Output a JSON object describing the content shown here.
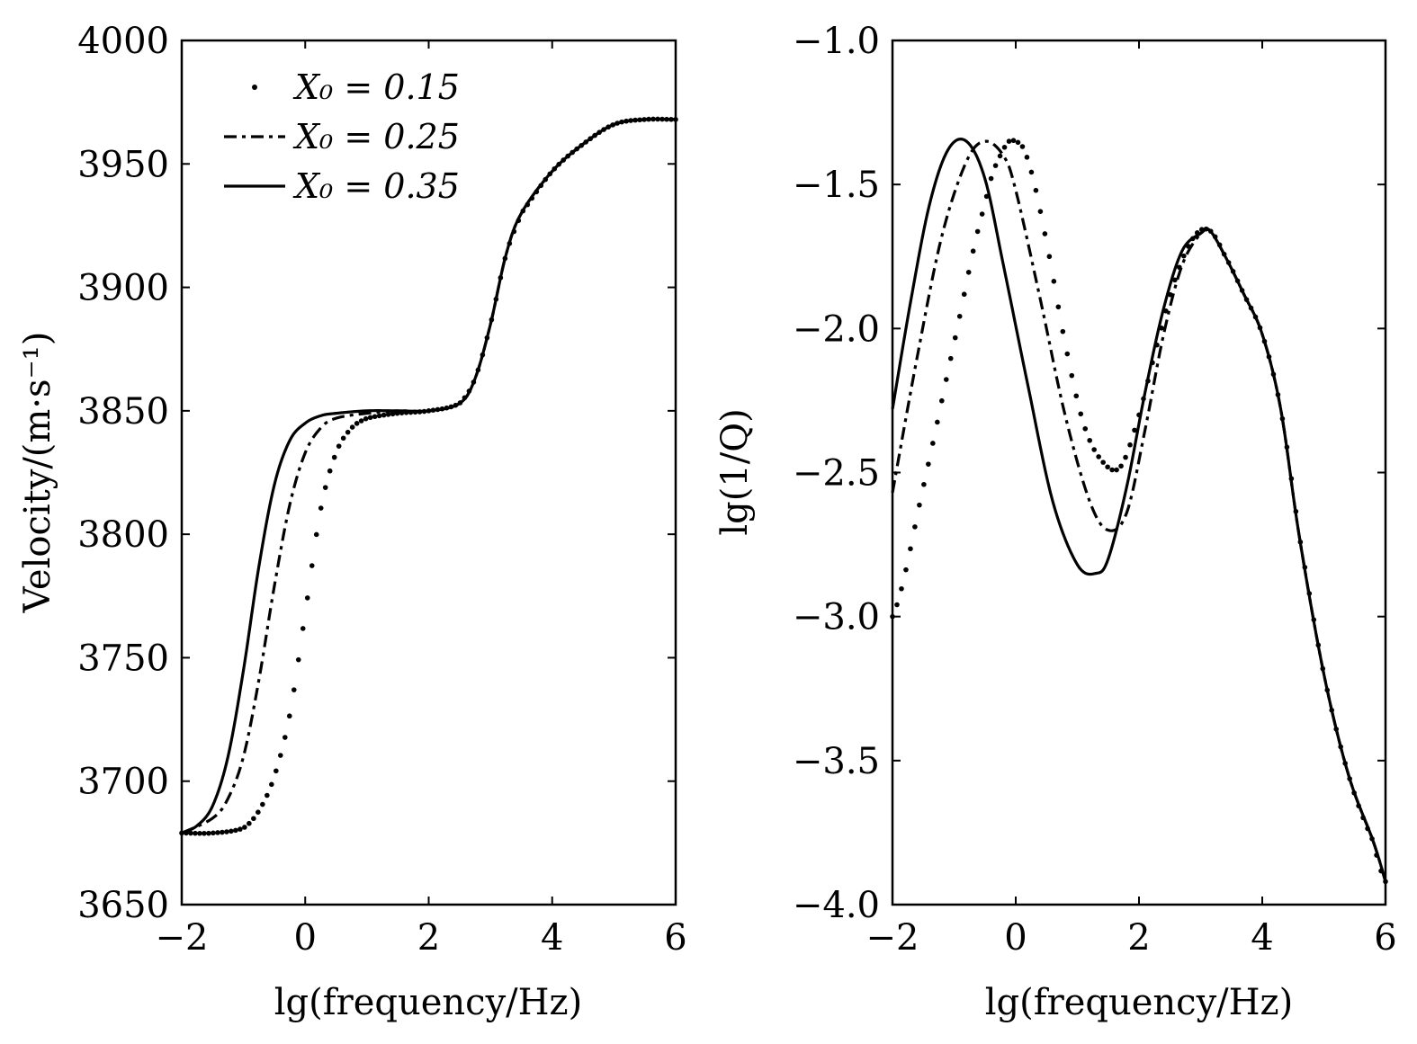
{
  "chart_data": [
    {
      "type": "line",
      "xlabel": "lg(frequency/Hz)",
      "ylabel": "Velocity/(m·s⁻¹)",
      "xlim": [
        -2,
        6
      ],
      "ylim": [
        3650,
        4000
      ],
      "xticks": [
        "−2",
        "0",
        "2",
        "4",
        "6"
      ],
      "yticks": [
        "3650",
        "3700",
        "3750",
        "3800",
        "3850",
        "3900",
        "3950",
        "4000"
      ],
      "legend_position": "top-left",
      "series": [
        {
          "name": "X₀ = 0.15",
          "style": "dotted",
          "x": [
            -2,
            -1.5,
            -1,
            -0.75,
            -0.5,
            -0.25,
            0,
            0.25,
            0.5,
            0.75,
            1,
            1.5,
            2,
            2.5,
            2.75,
            3,
            3.25,
            3.5,
            4,
            4.5,
            5,
            5.5,
            6
          ],
          "y": [
            3679,
            3679,
            3681,
            3688,
            3702,
            3727,
            3768,
            3810,
            3833,
            3843,
            3847,
            3849,
            3850,
            3853,
            3863,
            3885,
            3913,
            3930,
            3947,
            3958,
            3966,
            3968,
            3968
          ]
        },
        {
          "name": "X₀ = 0.25",
          "style": "dashdot",
          "x": [
            -2,
            -1.5,
            -1.25,
            -1,
            -0.75,
            -0.5,
            -0.25,
            0,
            0.25,
            0.5,
            1,
            1.5,
            2,
            2.5,
            2.75,
            3,
            3.25,
            3.5,
            4,
            4.5,
            5,
            5.5,
            6
          ],
          "y": [
            3679,
            3685,
            3693,
            3710,
            3741,
            3779,
            3812,
            3833,
            3843,
            3847,
            3849,
            3850,
            3850,
            3853,
            3863,
            3885,
            3913,
            3930,
            3947,
            3958,
            3966,
            3968,
            3968
          ]
        },
        {
          "name": "X₀ = 0.35",
          "style": "solid",
          "x": [
            -2,
            -1.75,
            -1.5,
            -1.25,
            -1,
            -0.75,
            -0.5,
            -0.25,
            0,
            0.25,
            0.5,
            1,
            1.5,
            2,
            2.5,
            2.75,
            3,
            3.25,
            3.5,
            4,
            4.5,
            5,
            5.5,
            6
          ],
          "y": [
            3679,
            3682,
            3690,
            3710,
            3745,
            3787,
            3820,
            3838,
            3845,
            3848,
            3849,
            3850,
            3850,
            3850,
            3853,
            3863,
            3885,
            3913,
            3930,
            3947,
            3958,
            3966,
            3968,
            3968
          ]
        }
      ]
    },
    {
      "type": "line",
      "xlabel": "lg(frequency/Hz)",
      "ylabel": "lg(1/Q)",
      "xlim": [
        -2,
        6
      ],
      "ylim": [
        -4.0,
        -1.0
      ],
      "xticks": [
        "−2",
        "0",
        "2",
        "4",
        "6"
      ],
      "yticks": [
        "−4.0",
        "−3.5",
        "−3.0",
        "−2.5",
        "−2.0",
        "−1.5",
        "−1.0"
      ],
      "series": [
        {
          "name": "X₀ = 0.15",
          "style": "dotted",
          "x": [
            -2,
            -1.5,
            -1,
            -0.5,
            -0.2,
            0,
            0.2,
            0.5,
            0.8,
            1.1,
            1.4,
            1.7,
            2.0,
            2.3,
            2.6,
            2.9,
            3.15,
            3.4,
            3.7,
            4.0,
            4.3,
            4.6,
            5.0,
            5.4,
            5.8,
            6.0
          ],
          "y": [
            -3.0,
            -2.55,
            -2.05,
            -1.57,
            -1.38,
            -1.35,
            -1.42,
            -1.7,
            -2.05,
            -2.33,
            -2.46,
            -2.48,
            -2.3,
            -2.05,
            -1.82,
            -1.68,
            -1.66,
            -1.75,
            -1.88,
            -2.02,
            -2.28,
            -2.72,
            -3.2,
            -3.55,
            -3.78,
            -3.92
          ]
        },
        {
          "name": "X₀ = 0.25",
          "style": "dashdot",
          "x": [
            -2,
            -1.6,
            -1.2,
            -0.8,
            -0.5,
            -0.2,
            0,
            0.4,
            0.8,
            1.2,
            1.5,
            1.8,
            2.1,
            2.4,
            2.7,
            3.0,
            3.15,
            3.4,
            3.7,
            4.0,
            4.3,
            4.6,
            5.0,
            5.4,
            5.8,
            6.0
          ],
          "y": [
            -2.57,
            -2.1,
            -1.68,
            -1.42,
            -1.35,
            -1.4,
            -1.52,
            -1.9,
            -2.3,
            -2.6,
            -2.7,
            -2.64,
            -2.35,
            -2.02,
            -1.78,
            -1.67,
            -1.66,
            -1.75,
            -1.88,
            -2.02,
            -2.28,
            -2.72,
            -3.2,
            -3.55,
            -3.78,
            -3.92
          ]
        },
        {
          "name": "X₀ = 0.35",
          "style": "solid",
          "x": [
            -2,
            -1.7,
            -1.4,
            -1.1,
            -0.8,
            -0.5,
            -0.2,
            0.2,
            0.6,
            1.0,
            1.3,
            1.5,
            1.8,
            2.1,
            2.4,
            2.7,
            3.0,
            3.15,
            3.4,
            3.7,
            4.0,
            4.3,
            4.6,
            5.0,
            5.4,
            5.8,
            6.0
          ],
          "y": [
            -2.28,
            -1.9,
            -1.57,
            -1.38,
            -1.35,
            -1.48,
            -1.78,
            -2.2,
            -2.6,
            -2.82,
            -2.85,
            -2.8,
            -2.55,
            -2.22,
            -1.93,
            -1.73,
            -1.67,
            -1.66,
            -1.75,
            -1.88,
            -2.02,
            -2.28,
            -2.72,
            -3.2,
            -3.55,
            -3.78,
            -3.92
          ]
        }
      ]
    }
  ]
}
